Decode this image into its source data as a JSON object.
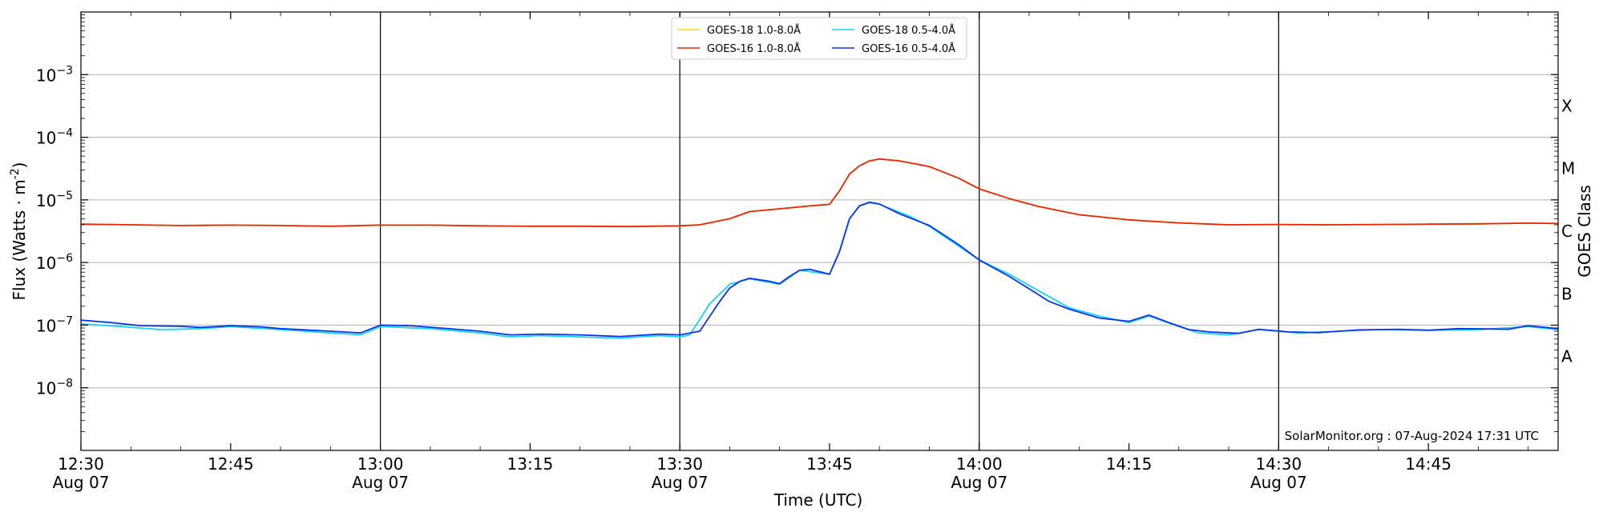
{
  "chart_data": {
    "type": "line",
    "xlabel": "Time (UTC)",
    "ylabel": "Flux (Watts · m",
    "ylabel_sup": "-2",
    "right_axis_label": "GOES Class",
    "credit": "SolarMonitor.org : 07-Aug-2024 17:31 UTC",
    "x_range": [
      "12:30",
      "14:58"
    ],
    "ylim": [
      1e-09,
      0.01
    ],
    "yscale": "log",
    "grid": "horizontal",
    "legend_position": "top-center",
    "y_ticks": [
      {
        "value": 1e-08,
        "base": "10",
        "exp": "−8"
      },
      {
        "value": 1e-07,
        "base": "10",
        "exp": "−7"
      },
      {
        "value": 1e-06,
        "base": "10",
        "exp": "−6"
      },
      {
        "value": 1e-05,
        "base": "10",
        "exp": "−5"
      },
      {
        "value": 0.0001,
        "base": "10",
        "exp": "−4"
      },
      {
        "value": 0.001,
        "base": "10",
        "exp": "−3"
      }
    ],
    "x_ticks": [
      {
        "time": "12:30",
        "label": "12:30",
        "date": "Aug 07"
      },
      {
        "time": "12:45",
        "label": "12:45",
        "date": ""
      },
      {
        "time": "13:00",
        "label": "13:00",
        "date": "Aug 07"
      },
      {
        "time": "13:15",
        "label": "13:15",
        "date": ""
      },
      {
        "time": "13:30",
        "label": "13:30",
        "date": "Aug 07"
      },
      {
        "time": "13:45",
        "label": "13:45",
        "date": ""
      },
      {
        "time": "14:00",
        "label": "14:00",
        "date": "Aug 07"
      },
      {
        "time": "14:15",
        "label": "14:15",
        "date": ""
      },
      {
        "time": "14:30",
        "label": "14:30",
        "date": "Aug 07"
      },
      {
        "time": "14:45",
        "label": "14:45",
        "date": ""
      }
    ],
    "vertical_lines": [
      "13:00",
      "13:30",
      "14:00",
      "14:30"
    ],
    "goes_classes": [
      {
        "label": "A",
        "value": 3.16e-08
      },
      {
        "label": "B",
        "value": 3.16e-07
      },
      {
        "label": "C",
        "value": 3.16e-06
      },
      {
        "label": "M",
        "value": 3.16e-05
      },
      {
        "label": "X",
        "value": 0.000316
      }
    ],
    "series": [
      {
        "name": "GOES-18 1.0-8.0Å",
        "color": "#ffd700",
        "points": [
          [
            "12:30",
            4.1e-06
          ],
          [
            "12:35",
            4e-06
          ],
          [
            "12:40",
            3.9e-06
          ],
          [
            "12:45",
            3.95e-06
          ],
          [
            "12:50",
            3.9e-06
          ],
          [
            "12:55",
            3.8e-06
          ],
          [
            "13:00",
            3.95e-06
          ],
          [
            "13:05",
            3.95e-06
          ],
          [
            "13:10",
            3.85e-06
          ],
          [
            "13:15",
            3.8e-06
          ],
          [
            "13:20",
            3.8e-06
          ],
          [
            "13:25",
            3.75e-06
          ],
          [
            "13:30",
            3.85e-06
          ],
          [
            "13:32",
            4e-06
          ],
          [
            "13:35",
            5e-06
          ],
          [
            "13:37",
            6.5e-06
          ],
          [
            "13:40",
            7.2e-06
          ],
          [
            "13:43",
            8e-06
          ],
          [
            "13:45",
            8.5e-06
          ],
          [
            "13:46",
            1.4e-05
          ],
          [
            "13:47",
            2.6e-05
          ],
          [
            "13:48",
            3.5e-05
          ],
          [
            "13:49",
            4.2e-05
          ],
          [
            "13:50",
            4.5e-05
          ],
          [
            "13:52",
            4.2e-05
          ],
          [
            "13:55",
            3.4e-05
          ],
          [
            "13:58",
            2.2e-05
          ],
          [
            "14:00",
            1.5e-05
          ],
          [
            "14:03",
            1.05e-05
          ],
          [
            "14:06",
            7.8e-06
          ],
          [
            "14:10",
            5.8e-06
          ],
          [
            "14:15",
            4.8e-06
          ],
          [
            "14:20",
            4.3e-06
          ],
          [
            "14:25",
            4e-06
          ],
          [
            "14:30",
            4.05e-06
          ],
          [
            "14:35",
            4e-06
          ],
          [
            "14:40",
            4.05e-06
          ],
          [
            "14:45",
            4.1e-06
          ],
          [
            "14:50",
            4.15e-06
          ],
          [
            "14:55",
            4.25e-06
          ],
          [
            "14:58",
            4.2e-06
          ]
        ]
      },
      {
        "name": "GOES-16 1.0-8.0Å",
        "color": "#e8260b",
        "points": [
          [
            "12:30",
            4.1e-06
          ],
          [
            "12:35",
            4e-06
          ],
          [
            "12:40",
            3.9e-06
          ],
          [
            "12:45",
            3.95e-06
          ],
          [
            "12:50",
            3.9e-06
          ],
          [
            "12:55",
            3.8e-06
          ],
          [
            "13:00",
            3.95e-06
          ],
          [
            "13:05",
            3.95e-06
          ],
          [
            "13:10",
            3.85e-06
          ],
          [
            "13:15",
            3.8e-06
          ],
          [
            "13:20",
            3.8e-06
          ],
          [
            "13:25",
            3.75e-06
          ],
          [
            "13:30",
            3.85e-06
          ],
          [
            "13:32",
            4e-06
          ],
          [
            "13:35",
            5e-06
          ],
          [
            "13:37",
            6.5e-06
          ],
          [
            "13:40",
            7.2e-06
          ],
          [
            "13:43",
            8e-06
          ],
          [
            "13:45",
            8.5e-06
          ],
          [
            "13:46",
            1.4e-05
          ],
          [
            "13:47",
            2.6e-05
          ],
          [
            "13:48",
            3.5e-05
          ],
          [
            "13:49",
            4.2e-05
          ],
          [
            "13:50",
            4.5e-05
          ],
          [
            "13:52",
            4.2e-05
          ],
          [
            "13:55",
            3.4e-05
          ],
          [
            "13:58",
            2.2e-05
          ],
          [
            "14:00",
            1.5e-05
          ],
          [
            "14:03",
            1.05e-05
          ],
          [
            "14:06",
            7.8e-06
          ],
          [
            "14:10",
            5.8e-06
          ],
          [
            "14:15",
            4.8e-06
          ],
          [
            "14:20",
            4.3e-06
          ],
          [
            "14:25",
            4e-06
          ],
          [
            "14:30",
            4.05e-06
          ],
          [
            "14:35",
            4e-06
          ],
          [
            "14:40",
            4.05e-06
          ],
          [
            "14:45",
            4.1e-06
          ],
          [
            "14:50",
            4.15e-06
          ],
          [
            "14:55",
            4.25e-06
          ],
          [
            "14:58",
            4.2e-06
          ]
        ]
      },
      {
        "name": "GOES-18 0.5-4.0Å",
        "color": "#19d3f3",
        "points": [
          [
            "12:30",
            1.05e-07
          ],
          [
            "12:34",
            9.5e-08
          ],
          [
            "12:38",
            8.5e-08
          ],
          [
            "12:42",
            8.8e-08
          ],
          [
            "12:45",
            9.5e-08
          ],
          [
            "12:50",
            8.5e-08
          ],
          [
            "12:55",
            7.5e-08
          ],
          [
            "12:58",
            7e-08
          ],
          [
            "13:00",
            9.5e-08
          ],
          [
            "13:05",
            8.8e-08
          ],
          [
            "13:10",
            7.5e-08
          ],
          [
            "13:13",
            6.5e-08
          ],
          [
            "13:16",
            6.8e-08
          ],
          [
            "13:20",
            6.5e-08
          ],
          [
            "13:24",
            6.2e-08
          ],
          [
            "13:28",
            6.8e-08
          ],
          [
            "13:30",
            6.5e-08
          ],
          [
            "13:31",
            7e-08
          ],
          [
            "13:33",
            2.2e-07
          ],
          [
            "13:35",
            4.5e-07
          ],
          [
            "13:37",
            5.5e-07
          ],
          [
            "13:40",
            4.5e-07
          ],
          [
            "13:42",
            7.5e-07
          ],
          [
            "13:45",
            6.5e-07
          ],
          [
            "13:46",
            1.5e-06
          ],
          [
            "13:47",
            5e-06
          ],
          [
            "13:48",
            8e-06
          ],
          [
            "13:49",
            9e-06
          ],
          [
            "13:50",
            8.5e-06
          ],
          [
            "13:53",
            5.5e-06
          ],
          [
            "13:55",
            3.8e-06
          ],
          [
            "13:58",
            1.8e-06
          ],
          [
            "14:00",
            1.1e-06
          ],
          [
            "14:03",
            6.5e-07
          ],
          [
            "14:06",
            3.5e-07
          ],
          [
            "14:09",
            1.9e-07
          ],
          [
            "14:12",
            1.4e-07
          ],
          [
            "14:15",
            1.1e-07
          ],
          [
            "14:17",
            1.4e-07
          ],
          [
            "14:20",
            9.5e-08
          ],
          [
            "14:22",
            7.5e-08
          ],
          [
            "14:25",
            7e-08
          ],
          [
            "14:28",
            8.5e-08
          ],
          [
            "14:32",
            7.5e-08
          ],
          [
            "14:36",
            8e-08
          ],
          [
            "14:40",
            8.5e-08
          ],
          [
            "14:45",
            8.3e-08
          ],
          [
            "14:50",
            8.5e-08
          ],
          [
            "14:55",
            9.5e-08
          ],
          [
            "14:58",
            8.5e-08
          ]
        ]
      },
      {
        "name": "GOES-16 0.5-4.0Å",
        "color": "#0b34e8",
        "points": [
          [
            "12:30",
            1.2e-07
          ],
          [
            "12:33",
            1.1e-07
          ],
          [
            "12:36",
            9.8e-08
          ],
          [
            "12:40",
            9.6e-08
          ],
          [
            "12:42",
            9.2e-08
          ],
          [
            "12:45",
            9.8e-08
          ],
          [
            "12:48",
            9.4e-08
          ],
          [
            "12:50",
            8.8e-08
          ],
          [
            "12:55",
            8e-08
          ],
          [
            "12:58",
            7.5e-08
          ],
          [
            "13:00",
            1e-07
          ],
          [
            "13:03",
            9.8e-08
          ],
          [
            "13:06",
            9e-08
          ],
          [
            "13:10",
            8e-08
          ],
          [
            "13:13",
            7e-08
          ],
          [
            "13:16",
            7.2e-08
          ],
          [
            "13:20",
            7e-08
          ],
          [
            "13:24",
            6.6e-08
          ],
          [
            "13:28",
            7.2e-08
          ],
          [
            "13:30",
            7e-08
          ],
          [
            "13:32",
            8e-08
          ],
          [
            "13:34",
            2.4e-07
          ],
          [
            "13:35",
            3.9e-07
          ],
          [
            "13:36",
            5e-07
          ],
          [
            "13:37",
            5.6e-07
          ],
          [
            "13:39",
            5e-07
          ],
          [
            "13:40",
            4.6e-07
          ],
          [
            "13:41",
            6e-07
          ],
          [
            "13:42",
            7.5e-07
          ],
          [
            "13:43",
            7.8e-07
          ],
          [
            "13:45",
            6.5e-07
          ],
          [
            "13:46",
            1.5e-06
          ],
          [
            "13:47",
            5e-06
          ],
          [
            "13:48",
            8e-06
          ],
          [
            "13:49",
            9.2e-06
          ],
          [
            "13:50",
            8.6e-06
          ],
          [
            "13:52",
            6e-06
          ],
          [
            "13:55",
            3.9e-06
          ],
          [
            "13:58",
            1.9e-06
          ],
          [
            "14:00",
            1.1e-06
          ],
          [
            "14:03",
            6e-07
          ],
          [
            "14:05",
            3.8e-07
          ],
          [
            "14:07",
            2.4e-07
          ],
          [
            "14:09",
            1.8e-07
          ],
          [
            "14:12",
            1.3e-07
          ],
          [
            "14:15",
            1.15e-07
          ],
          [
            "14:17",
            1.45e-07
          ],
          [
            "14:19",
            1.1e-07
          ],
          [
            "14:21",
            8.5e-08
          ],
          [
            "14:23",
            7.8e-08
          ],
          [
            "14:26",
            7.4e-08
          ],
          [
            "14:28",
            8.6e-08
          ],
          [
            "14:31",
            7.8e-08
          ],
          [
            "14:34",
            7.6e-08
          ],
          [
            "14:38",
            8.4e-08
          ],
          [
            "14:42",
            8.6e-08
          ],
          [
            "14:45",
            8.3e-08
          ],
          [
            "14:48",
            8.8e-08
          ],
          [
            "14:51",
            8.7e-08
          ],
          [
            "14:53",
            8.6e-08
          ],
          [
            "14:55",
            9.8e-08
          ],
          [
            "14:58",
            8.8e-08
          ]
        ]
      }
    ]
  }
}
